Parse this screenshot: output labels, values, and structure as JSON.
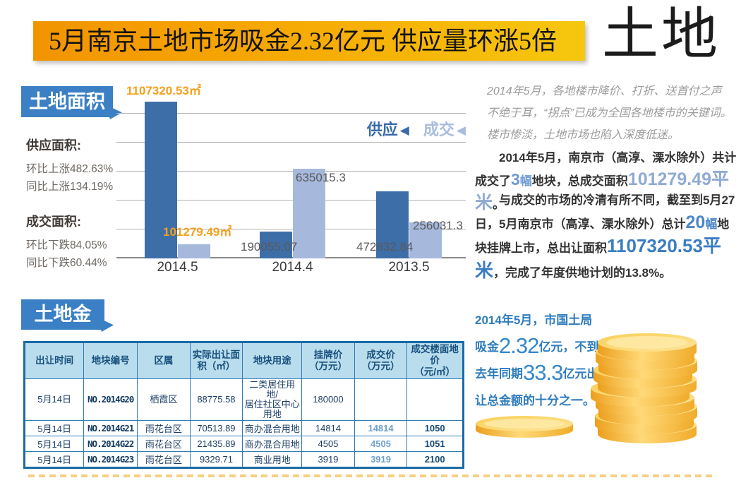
{
  "banner": {
    "title": "5月南京土地市场吸金2.32亿元  供应量环涨5倍",
    "page_tag": "土地"
  },
  "area_section": {
    "badge": "土地面积",
    "stats": [
      {
        "heading": "供应面积:",
        "lines": [
          "环比上涨482.63%",
          "同比上涨134.19%"
        ]
      },
      {
        "heading": "成交面积:",
        "lines": [
          "环比下跌84.05%",
          "同比下跌60.44%"
        ]
      }
    ]
  },
  "chart_data": {
    "type": "bar",
    "title": "土地面积",
    "categories": [
      "2014.5",
      "2014.4",
      "2013.5"
    ],
    "series": [
      {
        "name": "供应",
        "values": [
          1107320.53,
          190055.07,
          472832.84
        ]
      },
      {
        "name": "成交",
        "values": [
          101279.49,
          635015.3,
          256031.3
        ]
      }
    ],
    "value_labels": {
      "supply": [
        "1107320.53㎡",
        "190055.07",
        "472832.84"
      ],
      "deal": [
        "101279.49㎡",
        "635015.3",
        "256031.3"
      ]
    },
    "unit": "㎡",
    "ylim": [
      0,
      1150000
    ],
    "gridline_step": 200000,
    "grid": "horizontal",
    "legend_position": "top-right",
    "colors": {
      "supply": "#3d6ea8",
      "deal": "#a6b8dc",
      "label_highlight": "#f5a01d",
      "label_gray": "#58595b"
    }
  },
  "right_column": {
    "intro": "2014年5月，各地楼市降价、打折、送首付之声不绝于耳，“拐点”已成为全国各地楼市的关键词。楼市惨淡，土地市场也陷入深度低迷。",
    "p2": {
      "t1": "2014年5月，南京市（高淳、溧水除外）共计成交了",
      "n1": "3",
      "u1": "幅",
      "t2": "地块，总成交面积",
      "n2": "101279.49平米",
      "t3": "。"
    },
    "p3": {
      "t1": "与成交的市场的冷清有所不同，截至到5月27日，5月南京市（高淳、溧水除外）总计",
      "n1": "20",
      "u1": "幅",
      "t2": "地块挂牌上市，总出让面积",
      "n2": "1107320.53平米",
      "t3": "，完成了年度供地计划的13.8%。"
    }
  },
  "money_section": {
    "badge": "土地金",
    "note_lines": [
      {
        "pre": "2014年5月，市国土局",
        "big": "",
        "post": ""
      },
      {
        "pre": "吸金",
        "big": "2.32",
        "post": "亿元，不到"
      },
      {
        "pre": "去年同期",
        "big": "33.3",
        "post": "亿元出"
      },
      {
        "pre": "让总金额的十分之一。",
        "big": "",
        "post": ""
      }
    ]
  },
  "table": {
    "headers": [
      "出让时间",
      "地块编号",
      "区属",
      "实际出让面\n积（㎡）",
      "地块用途",
      "挂牌价\n（万元）",
      "成交价\n（万元）",
      "成交楼面地价\n（元/㎡）"
    ],
    "rows": [
      [
        "5月14日",
        "NO.2014G20",
        "栖霞区",
        "88775.58",
        "二类居住用地/\n居住社区中心\n用地",
        "180000",
        "",
        ""
      ],
      [
        "5月14日",
        "NO.2014G21",
        "雨花台区",
        "70513.89",
        "商办混合用地",
        "14814",
        "14814",
        "1050"
      ],
      [
        "5月14日",
        "NO.2014G22",
        "雨花台区",
        "21435.89",
        "商办混合用地",
        "4505",
        "4505",
        "1051"
      ],
      [
        "5月14日",
        "NO.2014G23",
        "雨花台区",
        "9329.71",
        "商业用地",
        "3919",
        "3919",
        "2100"
      ]
    ]
  }
}
